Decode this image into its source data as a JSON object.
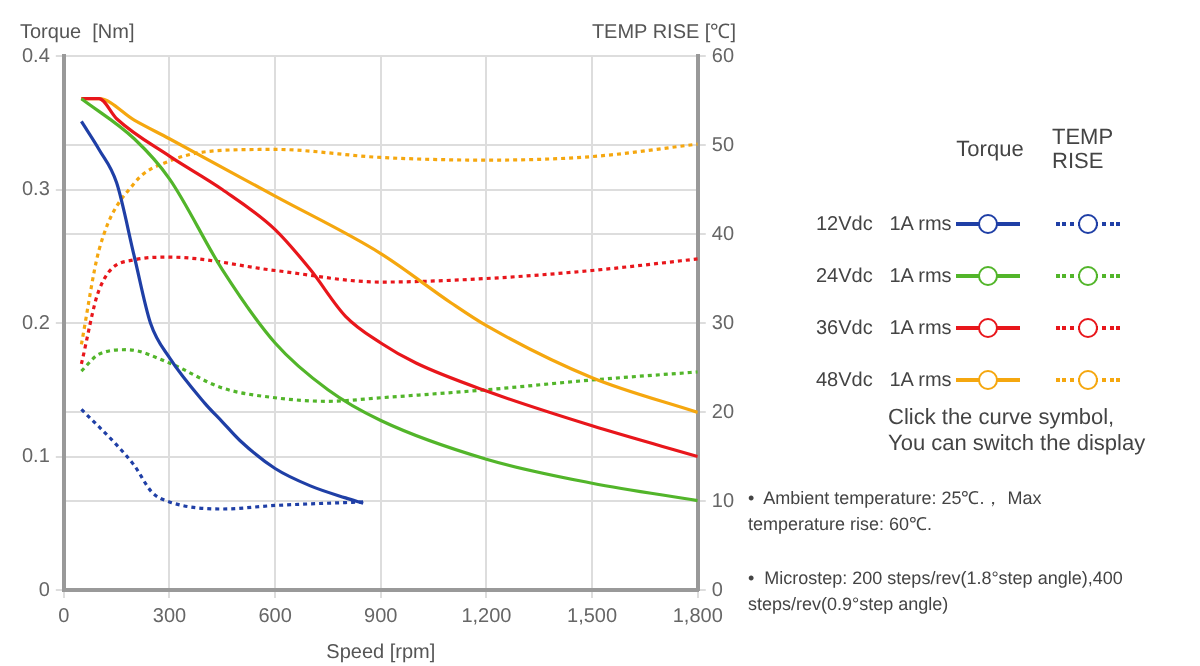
{
  "chart_data": {
    "type": "line",
    "xlabel": "Speed [rpm]",
    "ylabel": "Torque  [Nm]",
    "y2label": "TEMP RISE [℃]",
    "xlim": [
      0,
      1800
    ],
    "xticks": [
      0,
      300,
      600,
      900,
      {
        "value": 1200,
        "label": "1,200"
      },
      {
        "value": 1500,
        "label": "1,500"
      },
      {
        "value": 1800,
        "label": "1,800"
      }
    ],
    "ylim": [
      0,
      0.4
    ],
    "yticks": [
      0,
      0.1,
      0.2,
      0.3,
      0.4
    ],
    "y2lim": [
      0,
      60
    ],
    "y2ticks": [
      0,
      10,
      20,
      30,
      40,
      50,
      60
    ],
    "grid": true,
    "legend": "right",
    "legend_title": "Torque",
    "annotations": [
      "TEMP RISE",
      "Click the curve symbol,\nYou can switch the display",
      "•  Ambient temperature: 25℃.， Max temperature rise: 60℃.",
      "•  Microstep: 200 steps/rev(1.8°step angle),400 steps/rev(0.9°step angle)"
    ],
    "series": [
      {
        "name": "12Vdc   1A rms",
        "color": "#1f3fa6",
        "line_style": "solid",
        "x": [
          50,
          100,
          150,
          200,
          246,
          300,
          400,
          450,
          500,
          600,
          700,
          800,
          850
        ],
        "values": [
          0.351,
          0.33,
          0.305,
          0.25,
          0.2,
          0.174,
          0.14,
          0.126,
          0.112,
          0.091,
          0.078,
          0.069,
          0.065
        ]
      },
      {
        "name": "24Vdc   1A rms",
        "color": "#52b52a",
        "line_style": "solid",
        "x": [
          50,
          200,
          300,
          450,
          600,
          750,
          900,
          1200,
          1500,
          1800
        ],
        "values": [
          0.368,
          0.338,
          0.308,
          0.24,
          0.185,
          0.15,
          0.127,
          0.098,
          0.08,
          0.067
        ]
      },
      {
        "name": "36Vdc   1A rms",
        "color": "#e8161b",
        "line_style": "solid",
        "x": [
          50,
          100,
          150,
          300,
          450,
          600,
          700,
          800,
          900,
          1000,
          1200,
          1500,
          1800
        ],
        "values": [
          0.368,
          0.368,
          0.353,
          0.325,
          0.3,
          0.27,
          0.24,
          0.205,
          0.185,
          0.17,
          0.149,
          0.123,
          0.1
        ]
      },
      {
        "name": "48Vdc   1A rms",
        "color": "#f5a70f",
        "line_style": "solid",
        "x": [
          50,
          100,
          200,
          300,
          600,
          900,
          1100,
          1200,
          1500,
          1800
        ],
        "values": [
          0.368,
          0.368,
          0.352,
          0.338,
          0.295,
          0.252,
          0.215,
          0.198,
          0.159,
          0.133
        ]
      },
      {
        "color": "#1f3fa6",
        "line_style": "dotted",
        "axis": "y2",
        "x": [
          50,
          150,
          200,
          250,
          300,
          450,
          600,
          850
        ],
        "values": [
          20.3,
          16.3,
          14,
          11,
          9.9,
          9.1,
          9.5,
          9.9
        ]
      },
      {
        "color": "#52b52a",
        "line_style": "dotted",
        "axis": "y2",
        "x": [
          50,
          100,
          180,
          300,
          450,
          600,
          750,
          900,
          1200,
          1500,
          1800
        ],
        "values": [
          24.6,
          26.5,
          27,
          25.5,
          22.7,
          21.6,
          21.2,
          21.6,
          22.5,
          23.6,
          24.5
        ]
      },
      {
        "color": "#e8161b",
        "line_style": "dotted",
        "axis": "y2",
        "x": [
          50,
          100,
          200,
          300,
          600,
          900,
          1200,
          1500,
          1800
        ],
        "values": [
          25.4,
          33.7,
          37.1,
          37.4,
          35.9,
          34.6,
          35,
          35.9,
          37.2
        ]
      },
      {
        "color": "#f5a70f",
        "line_style": "dotted",
        "axis": "y2",
        "x": [
          50,
          100,
          200,
          300,
          450,
          600,
          900,
          1200,
          1500,
          1800
        ],
        "values": [
          27.6,
          38.2,
          45.7,
          48.2,
          49.4,
          49.5,
          48.6,
          48.3,
          48.7,
          50.1
        ]
      }
    ]
  }
}
